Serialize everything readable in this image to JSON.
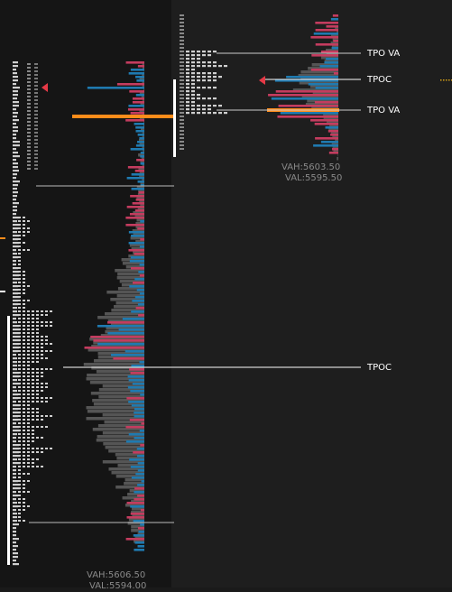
{
  "colors": {
    "background_left": "#151515",
    "background_right": "#1e1e1e",
    "buy_volume": "#1f7ab0",
    "sell_volume": "#c43c5f",
    "profile_shade": "#555555",
    "poc_bar": "#ff8c1a",
    "value_area_line": "#ffffff",
    "poc_marker": "#e63946",
    "letters": "#cfcfcf"
  },
  "right_profile": {
    "labels": {
      "tpo_va_top": "TPO VA",
      "tpoc": "TPOC",
      "tpo_va_bottom": "TPO VA"
    },
    "stats": {
      "vah": "VAH:5603.50",
      "val": "VAL:5595.50"
    }
  },
  "left_profile": {
    "labels": {
      "tpoc": "TPOC"
    },
    "stats": {
      "vah": "VAH:5606.50",
      "val": "VAL:5594.00"
    }
  }
}
